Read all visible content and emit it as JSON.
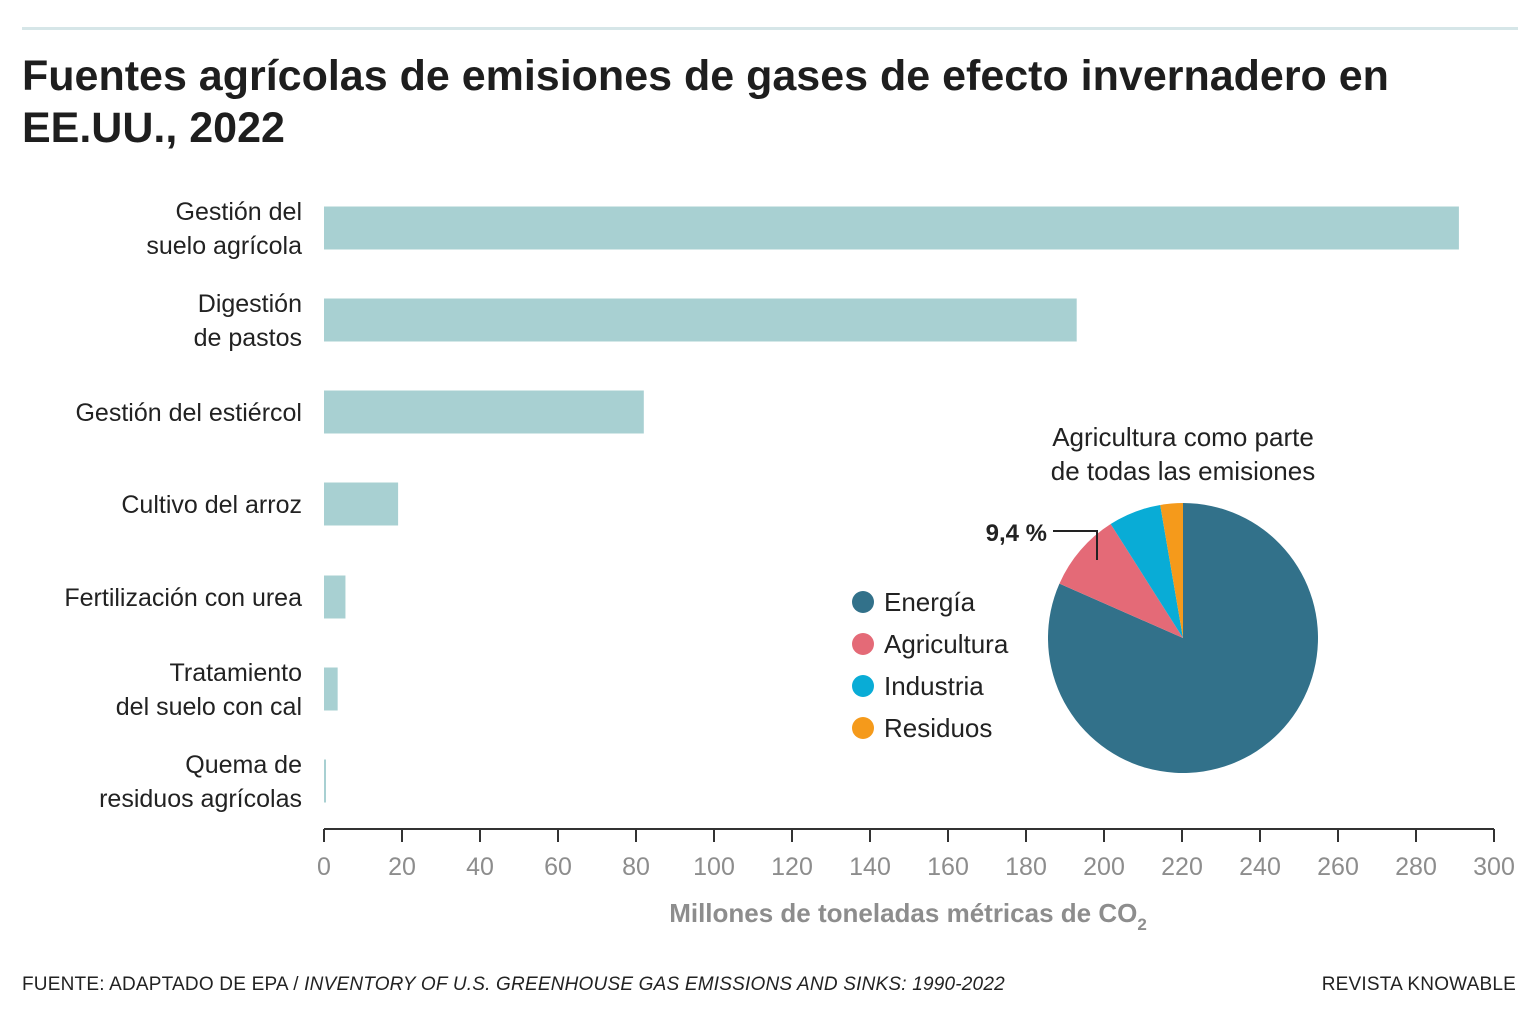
{
  "title": "Fuentes agrícolas de emisiones de gases de efecto invernadero en EE.UU., 2022",
  "colors": {
    "bar": "#a8d0d2",
    "axis": "#333333",
    "tick_text": "#8d8d8d",
    "energia": "#32718a",
    "agricultura": "#e46a77",
    "industria": "#09acd6",
    "residuos": "#f59a1b"
  },
  "chart_data": [
    {
      "type": "bar",
      "orientation": "horizontal",
      "categories": [
        [
          "Gestión del",
          "suelo agrícola"
        ],
        [
          "Digestión",
          "de pastos"
        ],
        [
          "Gestión del estiércol"
        ],
        [
          "Cultivo del arroz"
        ],
        [
          "Fertilización con urea"
        ],
        [
          "Tratamiento",
          "del suelo con cal"
        ],
        [
          "Quema de",
          "residuos agrícolas"
        ]
      ],
      "values": [
        291,
        193,
        82,
        19,
        5.5,
        3.5,
        0.5
      ],
      "xlim": [
        0,
        300
      ],
      "xticks": [
        0,
        20,
        40,
        60,
        80,
        100,
        120,
        140,
        160,
        180,
        200,
        220,
        240,
        260,
        280,
        300
      ],
      "xlabel": "Millones de toneladas métricas de CO",
      "xlabel_subscript": "2"
    },
    {
      "type": "pie",
      "title": [
        "Agricultura como parte",
        "de todas las emisiones"
      ],
      "slices": [
        {
          "label": "Energía",
          "value": 81.6,
          "color": "#32718a"
        },
        {
          "label": "Agricultura",
          "value": 9.4,
          "color": "#e46a77"
        },
        {
          "label": "Industria",
          "value": 6.3,
          "color": "#09acd6"
        },
        {
          "label": "Residuos",
          "value": 2.7,
          "color": "#f59a1b"
        }
      ],
      "callout": "9,4 %",
      "legend_position": "left"
    }
  ],
  "footer": {
    "source_prefix": "FUENTE: ADAPTADO DE EPA / ",
    "source_title": "INVENTORY OF U.S. GREENHOUSE GAS EMISSIONS AND SINKS: 1990-2022",
    "credit": "REVISTA KNOWABLE"
  }
}
